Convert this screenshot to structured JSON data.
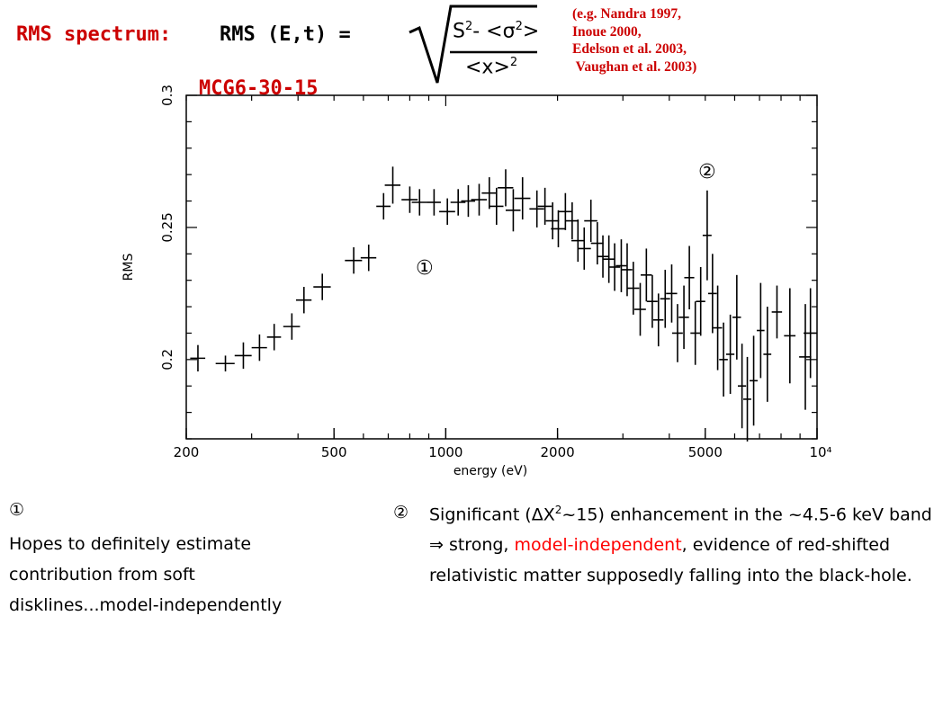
{
  "header": {
    "label": "RMS spectrum:",
    "equation_lhs": "RMS (E,t) =",
    "formula_numerator": "S",
    "formula_numerator_rest": "- <σ",
    "formula_numerator_end": ">",
    "formula_denominator": "<x>",
    "exponent": "2",
    "references": [
      "(e.g. Nandra 1997,",
      "Inoue 2000,",
      "Edelson et al. 2003,",
      " Vaughan et al. 2003)"
    ],
    "source": "MCG6-30-15"
  },
  "colors": {
    "accent_red": "#cc0000",
    "highlight_red": "#ff0000",
    "ink": "#000000"
  },
  "chart_data": {
    "type": "scatter",
    "xlabel": "energy (eV)",
    "ylabel": "RMS",
    "x_scale": "log",
    "xlim": [
      200,
      10000
    ],
    "ylim": [
      0.17,
      0.3
    ],
    "x_ticks": [
      "200",
      "500",
      "1000",
      "2000",
      "5000",
      "10⁴"
    ],
    "y_ticks": [
      "0.2",
      "0.25",
      "0.3"
    ],
    "annotations": [
      "①",
      "②"
    ],
    "series": [
      {
        "x": [
          215,
          255,
          285,
          315,
          345,
          385,
          415,
          465,
          565,
          620,
          680,
          720,
          800,
          850,
          930,
          1010,
          1080,
          1150,
          1230,
          1310,
          1370,
          1450,
          1520,
          1610,
          1760,
          1850,
          1940,
          2010,
          2100,
          2190,
          2270,
          2360,
          2460,
          2560,
          2650,
          2750,
          2850,
          2970,
          3080,
          3200,
          3340,
          3470,
          3600,
          3740,
          3900,
          4060,
          4210,
          4380,
          4530,
          4700,
          4860,
          5060,
          5230,
          5400,
          5600,
          5840,
          6080,
          6280,
          6490,
          6750,
          7050,
          7350,
          7800,
          8450,
          9300,
          9600
        ],
        "xerr": [
          10,
          15,
          15,
          15,
          15,
          20,
          20,
          25,
          30,
          30,
          30,
          35,
          40,
          40,
          40,
          50,
          50,
          50,
          60,
          60,
          60,
          70,
          70,
          80,
          80,
          80,
          80,
          90,
          90,
          90,
          90,
          100,
          100,
          100,
          100,
          100,
          100,
          100,
          100,
          120,
          120,
          120,
          120,
          120,
          120,
          140,
          140,
          140,
          140,
          140,
          140,
          140,
          140,
          150,
          150,
          150,
          160,
          160,
          160,
          170,
          170,
          180,
          250,
          300,
          350,
          400
        ],
        "y": [
          0.2005,
          0.1985,
          0.2015,
          0.2045,
          0.2085,
          0.2125,
          0.2225,
          0.2275,
          0.2375,
          0.2385,
          0.258,
          0.266,
          0.2605,
          0.2595,
          0.2595,
          0.256,
          0.2595,
          0.26,
          0.2605,
          0.263,
          0.258,
          0.265,
          0.2565,
          0.261,
          0.257,
          0.258,
          0.2525,
          0.2495,
          0.256,
          0.2525,
          0.245,
          0.242,
          0.2525,
          0.244,
          0.239,
          0.238,
          0.235,
          0.2355,
          0.234,
          0.227,
          0.219,
          0.232,
          0.222,
          0.215,
          0.223,
          0.225,
          0.21,
          0.216,
          0.231,
          0.21,
          0.222,
          0.247,
          0.225,
          0.212,
          0.2,
          0.202,
          0.216,
          0.19,
          0.185,
          0.192,
          0.211,
          0.202,
          0.218,
          0.209,
          0.201,
          0.21
        ],
        "yerr": [
          0.005,
          0.003,
          0.005,
          0.005,
          0.005,
          0.005,
          0.005,
          0.005,
          0.005,
          0.005,
          0.005,
          0.007,
          0.005,
          0.005,
          0.005,
          0.005,
          0.005,
          0.006,
          0.006,
          0.006,
          0.007,
          0.007,
          0.008,
          0.008,
          0.007,
          0.007,
          0.007,
          0.007,
          0.007,
          0.007,
          0.008,
          0.008,
          0.008,
          0.008,
          0.008,
          0.009,
          0.009,
          0.01,
          0.01,
          0.01,
          0.01,
          0.01,
          0.01,
          0.01,
          0.011,
          0.011,
          0.011,
          0.012,
          0.012,
          0.012,
          0.013,
          0.017,
          0.015,
          0.016,
          0.014,
          0.015,
          0.016,
          0.016,
          0.016,
          0.017,
          0.018,
          0.018,
          0.01,
          0.018,
          0.02,
          0.017
        ]
      }
    ]
  },
  "notes": {
    "note1": {
      "marker": "①",
      "text": "Hopes to definitely estimate\ncontribution from soft\ndisklines...model-independently"
    },
    "note2": {
      "marker": "②",
      "text_a": "Significant (ΔΧ",
      "text_sup": "2",
      "text_b": "~15) enhancement in the ~4.5-6 keV band ⇒ strong, ",
      "text_red": "model-independent",
      "text_c": ", evidence of red-shifted relativistic matter supposedly falling into the black-hole."
    }
  }
}
